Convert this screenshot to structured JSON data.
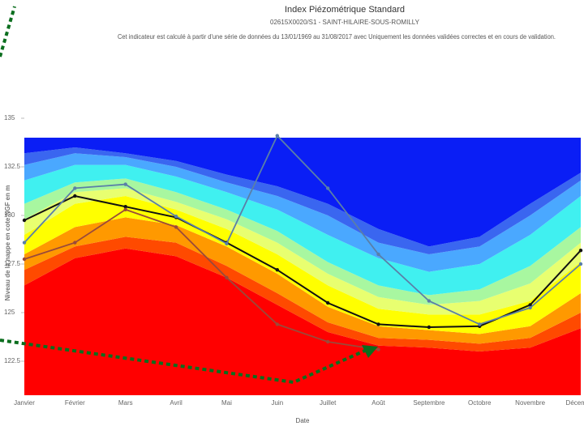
{
  "chart_data": {
    "type": "line",
    "title": "Index Piézométrique Standard",
    "subtitle": "02615X0020/S1 - SAINT-HILAIRE-SOUS-ROMILLY",
    "note": "Cet indicateur est calculé à partir d'une série de données du 13/01/1969 au 31/08/2017 avec Uniquement les données validées correctes et en cours de validation.",
    "x_label": "Date",
    "y_label": "Niveau de la nappe en cote NGF en m",
    "categories": [
      "Janvier",
      "Février",
      "Mars",
      "Avril",
      "Mai",
      "Juin",
      "Juillet",
      "Août",
      "Septembre",
      "Octobre",
      "Novembre",
      "Décembre"
    ],
    "ylim": [
      120.75,
      135
    ],
    "yticks": [
      122.5,
      125,
      127.5,
      130,
      132.5,
      135
    ],
    "bands": [
      {
        "color": "#ff0000",
        "values": [
          126.4,
          127.8,
          128.3,
          127.9,
          126.8,
          125.4,
          124.0,
          123.3,
          123.2,
          123.0,
          123.2,
          124.2
        ]
      },
      {
        "color": "#ff4a00",
        "values": [
          127.2,
          128.4,
          128.9,
          128.6,
          127.4,
          126.0,
          124.5,
          123.7,
          123.6,
          123.4,
          123.7,
          125.0
        ]
      },
      {
        "color": "#ff9900",
        "values": [
          128.0,
          129.4,
          129.9,
          129.5,
          128.4,
          127.0,
          125.3,
          124.3,
          124.1,
          123.9,
          124.3,
          126.0
        ]
      },
      {
        "color": "#ffff00",
        "values": [
          129.0,
          130.6,
          131.0,
          130.3,
          129.3,
          128.0,
          126.4,
          125.2,
          124.9,
          124.9,
          125.6,
          127.6
        ]
      },
      {
        "color": "#e8ff70",
        "values": [
          129.8,
          131.2,
          131.4,
          130.7,
          129.8,
          128.6,
          127.0,
          125.8,
          125.4,
          125.6,
          126.5,
          128.6
        ]
      },
      {
        "color": "#a8f7a0",
        "values": [
          130.6,
          131.7,
          131.9,
          131.2,
          130.3,
          129.2,
          127.6,
          126.4,
          125.9,
          126.2,
          127.4,
          129.4
        ]
      },
      {
        "color": "#40f0f0",
        "values": [
          131.8,
          132.6,
          132.6,
          132.0,
          131.2,
          130.3,
          129.0,
          127.8,
          127.1,
          127.5,
          129.0,
          131.0
        ]
      },
      {
        "color": "#4aa8ff",
        "values": [
          132.6,
          133.2,
          133.0,
          132.5,
          131.7,
          131.0,
          130.0,
          128.6,
          128.0,
          128.4,
          130.0,
          131.8
        ]
      },
      {
        "color": "#3a66f0",
        "values": [
          133.2,
          133.5,
          133.2,
          132.8,
          132.1,
          131.5,
          130.6,
          129.3,
          128.4,
          128.9,
          130.6,
          132.2
        ]
      },
      {
        "color": "#0a1ef5",
        "values": [
          134,
          134,
          134,
          134,
          134,
          134,
          134,
          134,
          134,
          134,
          134,
          134
        ]
      }
    ],
    "series": [
      {
        "color": "#111111",
        "values": [
          129.75,
          131.0,
          130.45,
          129.9,
          128.6,
          127.2,
          125.5,
          124.4,
          124.25,
          124.3,
          125.4,
          128.2
        ]
      },
      {
        "color": "#5a7fa8",
        "values": [
          128.6,
          131.4,
          131.6,
          129.95,
          128.55,
          134.1,
          131.4,
          128.0,
          125.6,
          124.4,
          125.25,
          127.5
        ]
      },
      {
        "color": "#9a4a3a",
        "values": [
          127.75,
          128.6,
          130.3,
          129.4,
          126.8,
          124.4,
          123.5,
          123.1,
          null,
          null,
          null,
          null
        ]
      }
    ]
  }
}
